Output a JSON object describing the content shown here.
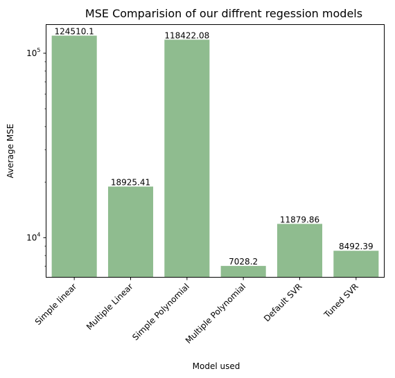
{
  "chart_data": {
    "type": "bar",
    "title": "MSE Comparision of our diffrent regession models",
    "xlabel": "Model used",
    "ylabel": "Average MSE",
    "yscale": "log",
    "ylim": [
      6100,
      143000
    ],
    "categories": [
      "Simple linear",
      "Multiple Linear",
      "Simple Polynomial",
      "Multiple Polynomial",
      "Default SVR",
      "Tuned SVR"
    ],
    "values": [
      124510.1,
      18925.41,
      118422.08,
      7028.2,
      11879.86,
      8492.39
    ],
    "value_labels": [
      "124510.1",
      "18925.41",
      "118422.08",
      "7028.2",
      "11879.86",
      "8492.39"
    ],
    "y_ticks": [
      {
        "value": 10000,
        "base": "10",
        "exp": "4"
      },
      {
        "value": 100000,
        "base": "10",
        "exp": "5"
      }
    ],
    "bar_color": "#8fbc8f",
    "grid": false,
    "legend": false
  }
}
